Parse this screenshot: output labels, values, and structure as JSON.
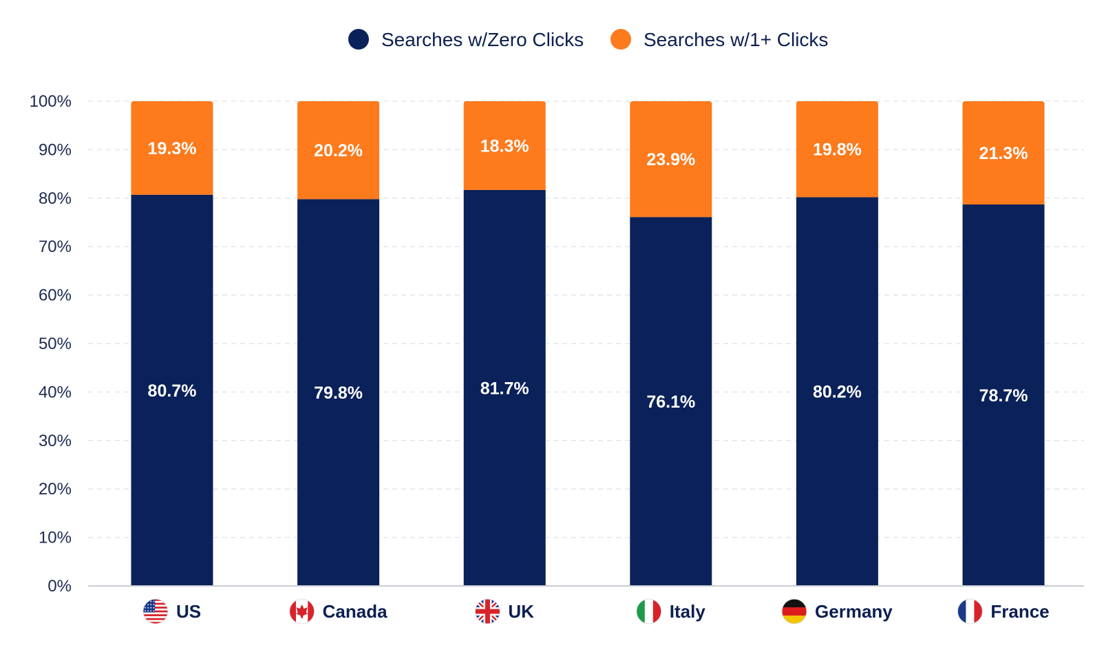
{
  "colors": {
    "zero_clicks": "#0a2159",
    "one_plus_clicks": "#fd7a1d",
    "grid": "#e3e5ea",
    "axis": "#c9ccd3",
    "text": "#0c1f4f"
  },
  "chart_data": {
    "type": "bar",
    "stacked": true,
    "categories": [
      "US",
      "Canada",
      "UK",
      "Italy",
      "Germany",
      "France"
    ],
    "category_icons": [
      "us-flag-icon",
      "canada-flag-icon",
      "uk-flag-icon",
      "italy-flag-icon",
      "germany-flag-icon",
      "france-flag-icon"
    ],
    "series": [
      {
        "name": "Searches w/Zero Clicks",
        "values": [
          80.7,
          79.8,
          81.7,
          76.1,
          80.2,
          78.7
        ],
        "labels": [
          "80.7%",
          "79.8%",
          "81.7%",
          "76.1%",
          "80.2%",
          "78.7%"
        ]
      },
      {
        "name": "Searches w/1+ Clicks",
        "values": [
          19.3,
          20.2,
          18.3,
          23.9,
          19.8,
          21.3
        ],
        "labels": [
          "19.3%",
          "20.2%",
          "18.3%",
          "23.9%",
          "19.8%",
          "21.3%"
        ]
      }
    ],
    "ylim": [
      0,
      100
    ],
    "yticks": [
      "0%",
      "10%",
      "20%",
      "30%",
      "40%",
      "50%",
      "60%",
      "70%",
      "80%",
      "90%",
      "100%"
    ],
    "grid": true,
    "legend": "top-center",
    "title": "",
    "xlabel": "",
    "ylabel": ""
  }
}
